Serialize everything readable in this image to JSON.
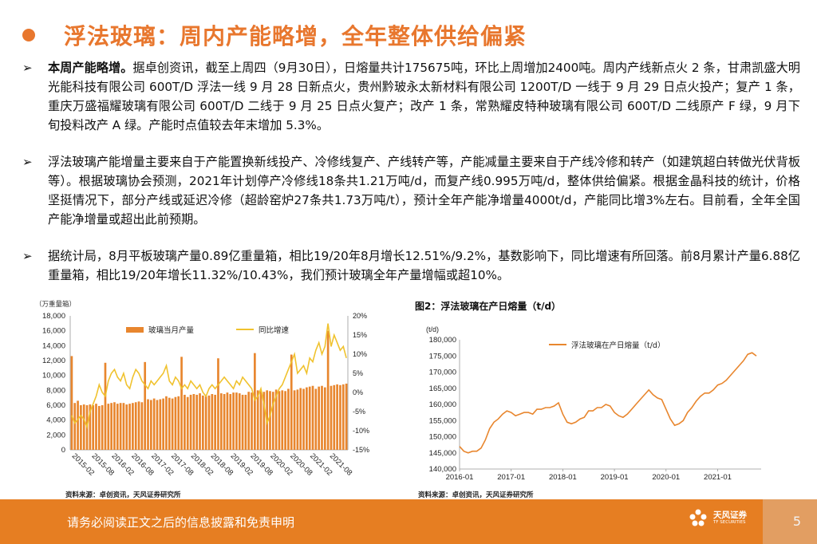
{
  "page": {
    "title": "浮法玻璃：周内产能略增，全年整体供给偏紧",
    "page_number": "5",
    "footer_text": "请务必阅读正文之后的信息披露和免责申明",
    "logo_name": "天风证券",
    "logo_sub": "TF SECURITIES",
    "accent_color": "#e8772e"
  },
  "bullets": [
    {
      "marker": "➢",
      "lead": "本周产能略增。",
      "text": "据卓创资讯，截至上周四（9月30日），日熔量共计175675吨，环比上周增加2400吨。周内产线新点火 2 条，甘肃凯盛大明光能科技有限公司 600T/D 浮法一线 9 月 28 日新点火，贵州黔玻永太新材料有限公司 1200T/D 一线于 9 月 29 日点火投产；复产 1 条，重庆万盛福耀玻璃有限公司 600T/D 二线于 9 月 25 日点火复产；改产 1 条，常熟耀皮特种玻璃有限公司 600T/D 二线原产 F 绿，9 月下旬投料改产 A 绿。产能时点值较去年末增加 5.3%。"
    },
    {
      "marker": "➢",
      "lead": "",
      "text": "浮法玻璃产能增量主要来自于产能置换新线投产、冷修线复产、产线转产等，产能减量主要来自于产线冷修和转产（如建筑超白转做光伏背板等）。根据玻璃协会预测，2021年计划停产冷修线18条共1.21万吨/d，而复产线0.995万吨/d，整体供给偏紧。根据金晶科技的统计，价格坚挺情况下，部分产线或延迟冷修（超龄窑炉27条共1.73万吨/t），预计全年产能净增量4000t/d，产能同比增3%左右。目前看，全年全国产能净增量或超出此前预期。"
    },
    {
      "marker": "➢",
      "lead": "",
      "text": "据统计局，8月平板玻璃产量0.89亿重量箱，相比19/20年8月增长12.51%/9.2%，基数影响下，同比增速有所回落。前8月累计产量6.88亿重量箱，相比19/20年增长11.32%/10.43%，我们预计玻璃全年产量增幅或超10%。"
    }
  ],
  "chart1_meta": {
    "caption": "",
    "source": "资料来源：卓创资讯，天风证券研究所",
    "unit_label": "（万重量箱）"
  },
  "chart2_meta": {
    "caption": "图2：浮法玻璃在产日熔量（t/d）",
    "source": "资料来源：卓创资讯，天风证券研究所",
    "unit_label": "(t/d)"
  },
  "chart_data": [
    {
      "type": "bar",
      "title": "",
      "unit_label": "（万重量箱）",
      "colors": {
        "bar": "#e8862e",
        "line": "#f0c22e"
      },
      "y_left": {
        "min": 0,
        "max": 18000,
        "ticks": [
          "0",
          "2,000",
          "4,000",
          "6,000",
          "8,000",
          "10,000",
          "12,000",
          "14,000",
          "16,000",
          "18,000"
        ]
      },
      "y_right": {
        "min": -15,
        "max": 20,
        "ticks": [
          "-15%",
          "-10%",
          "-5%",
          "0%",
          "5%",
          "10%",
          "15%",
          "20%"
        ]
      },
      "x_ticks": [
        "2015-02",
        "2015-08",
        "2016-02",
        "2016-08",
        "2017-02",
        "2017-08",
        "2018-02",
        "2018-08",
        "2019-02",
        "2019-08",
        "2020-02",
        "2020-08",
        "2021-02",
        "2021-08"
      ],
      "series": [
        {
          "name": "玻璃当月产量",
          "axis": "left",
          "values": [
            12600,
            6300,
            6600,
            6000,
            6100,
            6000,
            6100,
            6000,
            6200,
            5900,
            6000,
            11700,
            6200,
            6300,
            6400,
            6200,
            6300,
            6300,
            6100,
            6200,
            6300,
            6400,
            6500,
            6400,
            11800,
            6800,
            6700,
            6900,
            6700,
            6800,
            6900,
            7200,
            7000,
            6900,
            7100,
            7200,
            12500,
            7400,
            7100,
            7400,
            7500,
            7400,
            7600,
            7300,
            7200,
            7300,
            7500,
            7400,
            12300,
            7600,
            7500,
            7700,
            7500,
            7700,
            7700,
            7600,
            7400,
            7400,
            7800,
            7700,
            13000,
            8000,
            7900,
            7800,
            8000,
            7900,
            7800,
            8100,
            7900,
            8000,
            7900,
            8200,
            12800,
            8000,
            8100,
            8300,
            8200,
            8400,
            8500,
            8600,
            8200,
            8500,
            8600,
            8400,
            16000,
            8600,
            8700,
            8800,
            8700,
            8800,
            8900
          ]
        },
        {
          "name": "同比增速",
          "axis": "right",
          "values": [
            -6,
            -8,
            -7,
            -6,
            -7,
            -9,
            -5,
            -3,
            -1,
            2,
            0,
            -1,
            3,
            5,
            6,
            4,
            3,
            5,
            2,
            1,
            4,
            6,
            5,
            3,
            2,
            1,
            3,
            2,
            3,
            4,
            5,
            7,
            3,
            2,
            4,
            3,
            1,
            2,
            1,
            3,
            2,
            1,
            2,
            0,
            -1,
            1,
            2,
            1,
            2,
            3,
            4,
            3,
            2,
            1,
            3,
            2,
            4,
            3,
            2,
            1,
            -2,
            -1,
            1,
            -3,
            -8,
            -6,
            -3,
            -1,
            1,
            2,
            4,
            6,
            8,
            10,
            5,
            6,
            7,
            5,
            9,
            8,
            11,
            13,
            10,
            12,
            18,
            12,
            15,
            13,
            11,
            12,
            9
          ]
        }
      ]
    },
    {
      "type": "line",
      "title": "图2：浮法玻璃在产日熔量（t/d）",
      "ylabel": "(t/d)",
      "colors": {
        "line": "#e8862e"
      },
      "ylim": [
        140000,
        180000
      ],
      "y_ticks": [
        "140,000",
        "145,000",
        "150,000",
        "155,000",
        "160,000",
        "165,000",
        "170,000",
        "175,000",
        "180,000"
      ],
      "x_ticks": [
        "2016-01",
        "2017-01",
        "2018-01",
        "2019-01",
        "2020-01",
        "2021-01"
      ],
      "x_range": [
        "2016-01",
        "2021-10"
      ],
      "series": [
        {
          "name": "浮法玻璃在产日熔量（t/d）",
          "x": [
            "2016-01",
            "2016-02",
            "2016-03",
            "2016-04",
            "2016-05",
            "2016-06",
            "2016-07",
            "2016-08",
            "2016-09",
            "2016-10",
            "2016-11",
            "2016-12",
            "2017-01",
            "2017-02",
            "2017-03",
            "2017-04",
            "2017-05",
            "2017-06",
            "2017-07",
            "2017-08",
            "2017-09",
            "2017-10",
            "2017-11",
            "2017-12",
            "2018-01",
            "2018-02",
            "2018-03",
            "2018-04",
            "2018-05",
            "2018-06",
            "2018-07",
            "2018-08",
            "2018-09",
            "2018-10",
            "2018-11",
            "2018-12",
            "2019-01",
            "2019-02",
            "2019-03",
            "2019-04",
            "2019-05",
            "2019-06",
            "2019-07",
            "2019-08",
            "2019-09",
            "2019-10",
            "2019-11",
            "2019-12",
            "2020-01",
            "2020-02",
            "2020-03",
            "2020-04",
            "2020-05",
            "2020-06",
            "2020-07",
            "2020-08",
            "2020-09",
            "2020-10",
            "2020-11",
            "2020-12",
            "2021-01",
            "2021-02",
            "2021-03",
            "2021-04",
            "2021-05",
            "2021-06",
            "2021-07",
            "2021-08",
            "2021-09",
            "2021-10"
          ],
          "values": [
            147000,
            145500,
            145000,
            145500,
            145500,
            146500,
            149000,
            152500,
            154500,
            155500,
            157000,
            158000,
            157500,
            156500,
            157000,
            157500,
            157500,
            157000,
            158500,
            158500,
            159000,
            159000,
            159500,
            160500,
            157000,
            154500,
            154000,
            154500,
            155500,
            156000,
            158000,
            158000,
            159000,
            159000,
            160000,
            159500,
            157500,
            156500,
            156000,
            157000,
            158500,
            160000,
            161500,
            163000,
            164500,
            163000,
            162000,
            161500,
            158500,
            155500,
            153500,
            154000,
            155000,
            157500,
            159000,
            161000,
            162500,
            163500,
            163500,
            164500,
            166000,
            166500,
            167500,
            169000,
            170500,
            172000,
            173500,
            175500,
            176000,
            175000
          ]
        }
      ]
    }
  ]
}
